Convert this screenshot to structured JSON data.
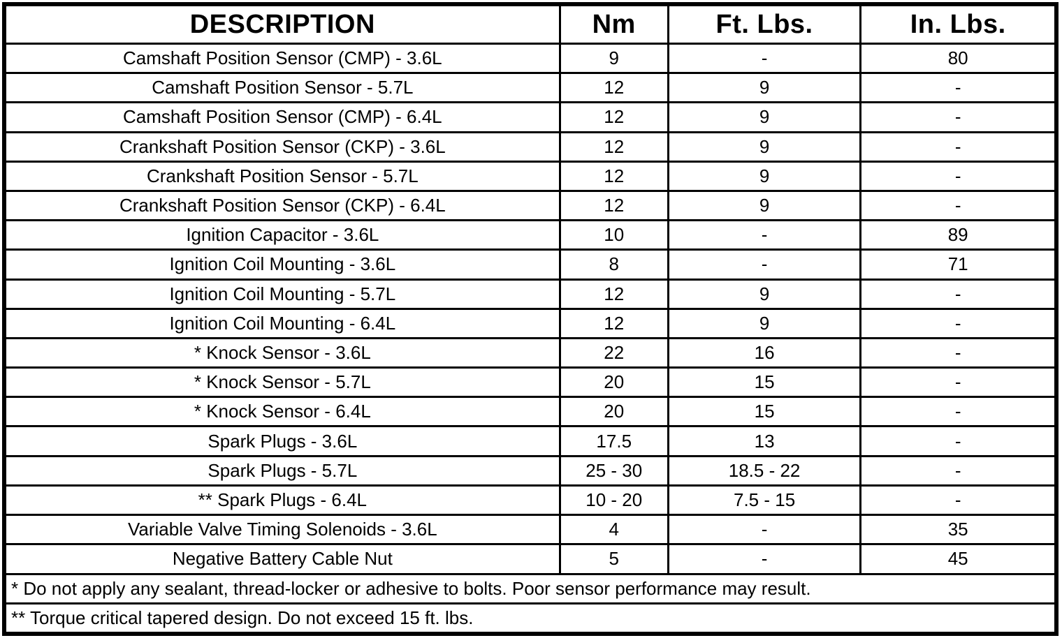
{
  "title": "Ignition system torque specifications table",
  "colors": {
    "background": "#ffffff",
    "border": "#000000",
    "text": "#000000"
  },
  "table": {
    "columns": [
      "DESCRIPTION",
      "Nm",
      "Ft. Lbs.",
      "In. Lbs."
    ],
    "rows": [
      {
        "description": "Camshaft Position Sensor (CMP) - 3.6L",
        "nm": "9",
        "ft_lbs": "-",
        "in_lbs": "80"
      },
      {
        "description": "Camshaft Position Sensor - 5.7L",
        "nm": "12",
        "ft_lbs": "9",
        "in_lbs": "-"
      },
      {
        "description": "Camshaft Position Sensor (CMP) - 6.4L",
        "nm": "12",
        "ft_lbs": "9",
        "in_lbs": "-"
      },
      {
        "description": "Crankshaft Position Sensor (CKP) - 3.6L",
        "nm": "12",
        "ft_lbs": "9",
        "in_lbs": "-"
      },
      {
        "description": "Crankshaft Position Sensor - 5.7L",
        "nm": "12",
        "ft_lbs": "9",
        "in_lbs": "-"
      },
      {
        "description": "Crankshaft Position Sensor (CKP) - 6.4L",
        "nm": "12",
        "ft_lbs": "9",
        "in_lbs": "-"
      },
      {
        "description": "Ignition Capacitor - 3.6L",
        "nm": "10",
        "ft_lbs": "-",
        "in_lbs": "89"
      },
      {
        "description": "Ignition Coil Mounting - 3.6L",
        "nm": "8",
        "ft_lbs": "-",
        "in_lbs": "71"
      },
      {
        "description": "Ignition Coil Mounting - 5.7L",
        "nm": "12",
        "ft_lbs": "9",
        "in_lbs": "-"
      },
      {
        "description": "Ignition Coil Mounting - 6.4L",
        "nm": "12",
        "ft_lbs": "9",
        "in_lbs": "-"
      },
      {
        "description": "* Knock Sensor - 3.6L",
        "nm": "22",
        "ft_lbs": "16",
        "in_lbs": "-"
      },
      {
        "description": "* Knock Sensor - 5.7L",
        "nm": "20",
        "ft_lbs": "15",
        "in_lbs": "-"
      },
      {
        "description": "* Knock Sensor - 6.4L",
        "nm": "20",
        "ft_lbs": "15",
        "in_lbs": "-"
      },
      {
        "description": "Spark Plugs - 3.6L",
        "nm": "17.5",
        "ft_lbs": "13",
        "in_lbs": "-"
      },
      {
        "description": "Spark Plugs - 5.7L",
        "nm": "25 - 30",
        "ft_lbs": "18.5 - 22",
        "in_lbs": "-"
      },
      {
        "description": "** Spark Plugs - 6.4L",
        "nm": "10 - 20",
        "ft_lbs": "7.5 - 15",
        "in_lbs": "-"
      },
      {
        "description": "Variable Valve Timing Solenoids - 3.6L",
        "nm": "4",
        "ft_lbs": "-",
        "in_lbs": "35"
      },
      {
        "description": "Negative Battery Cable Nut",
        "nm": "5",
        "ft_lbs": "-",
        "in_lbs": "45"
      }
    ],
    "footnotes": [
      "* Do not apply any sealant, thread-locker or adhesive to bolts. Poor sensor performance may result.",
      "** Torque critical tapered design. Do not exceed 15 ft. lbs."
    ]
  }
}
